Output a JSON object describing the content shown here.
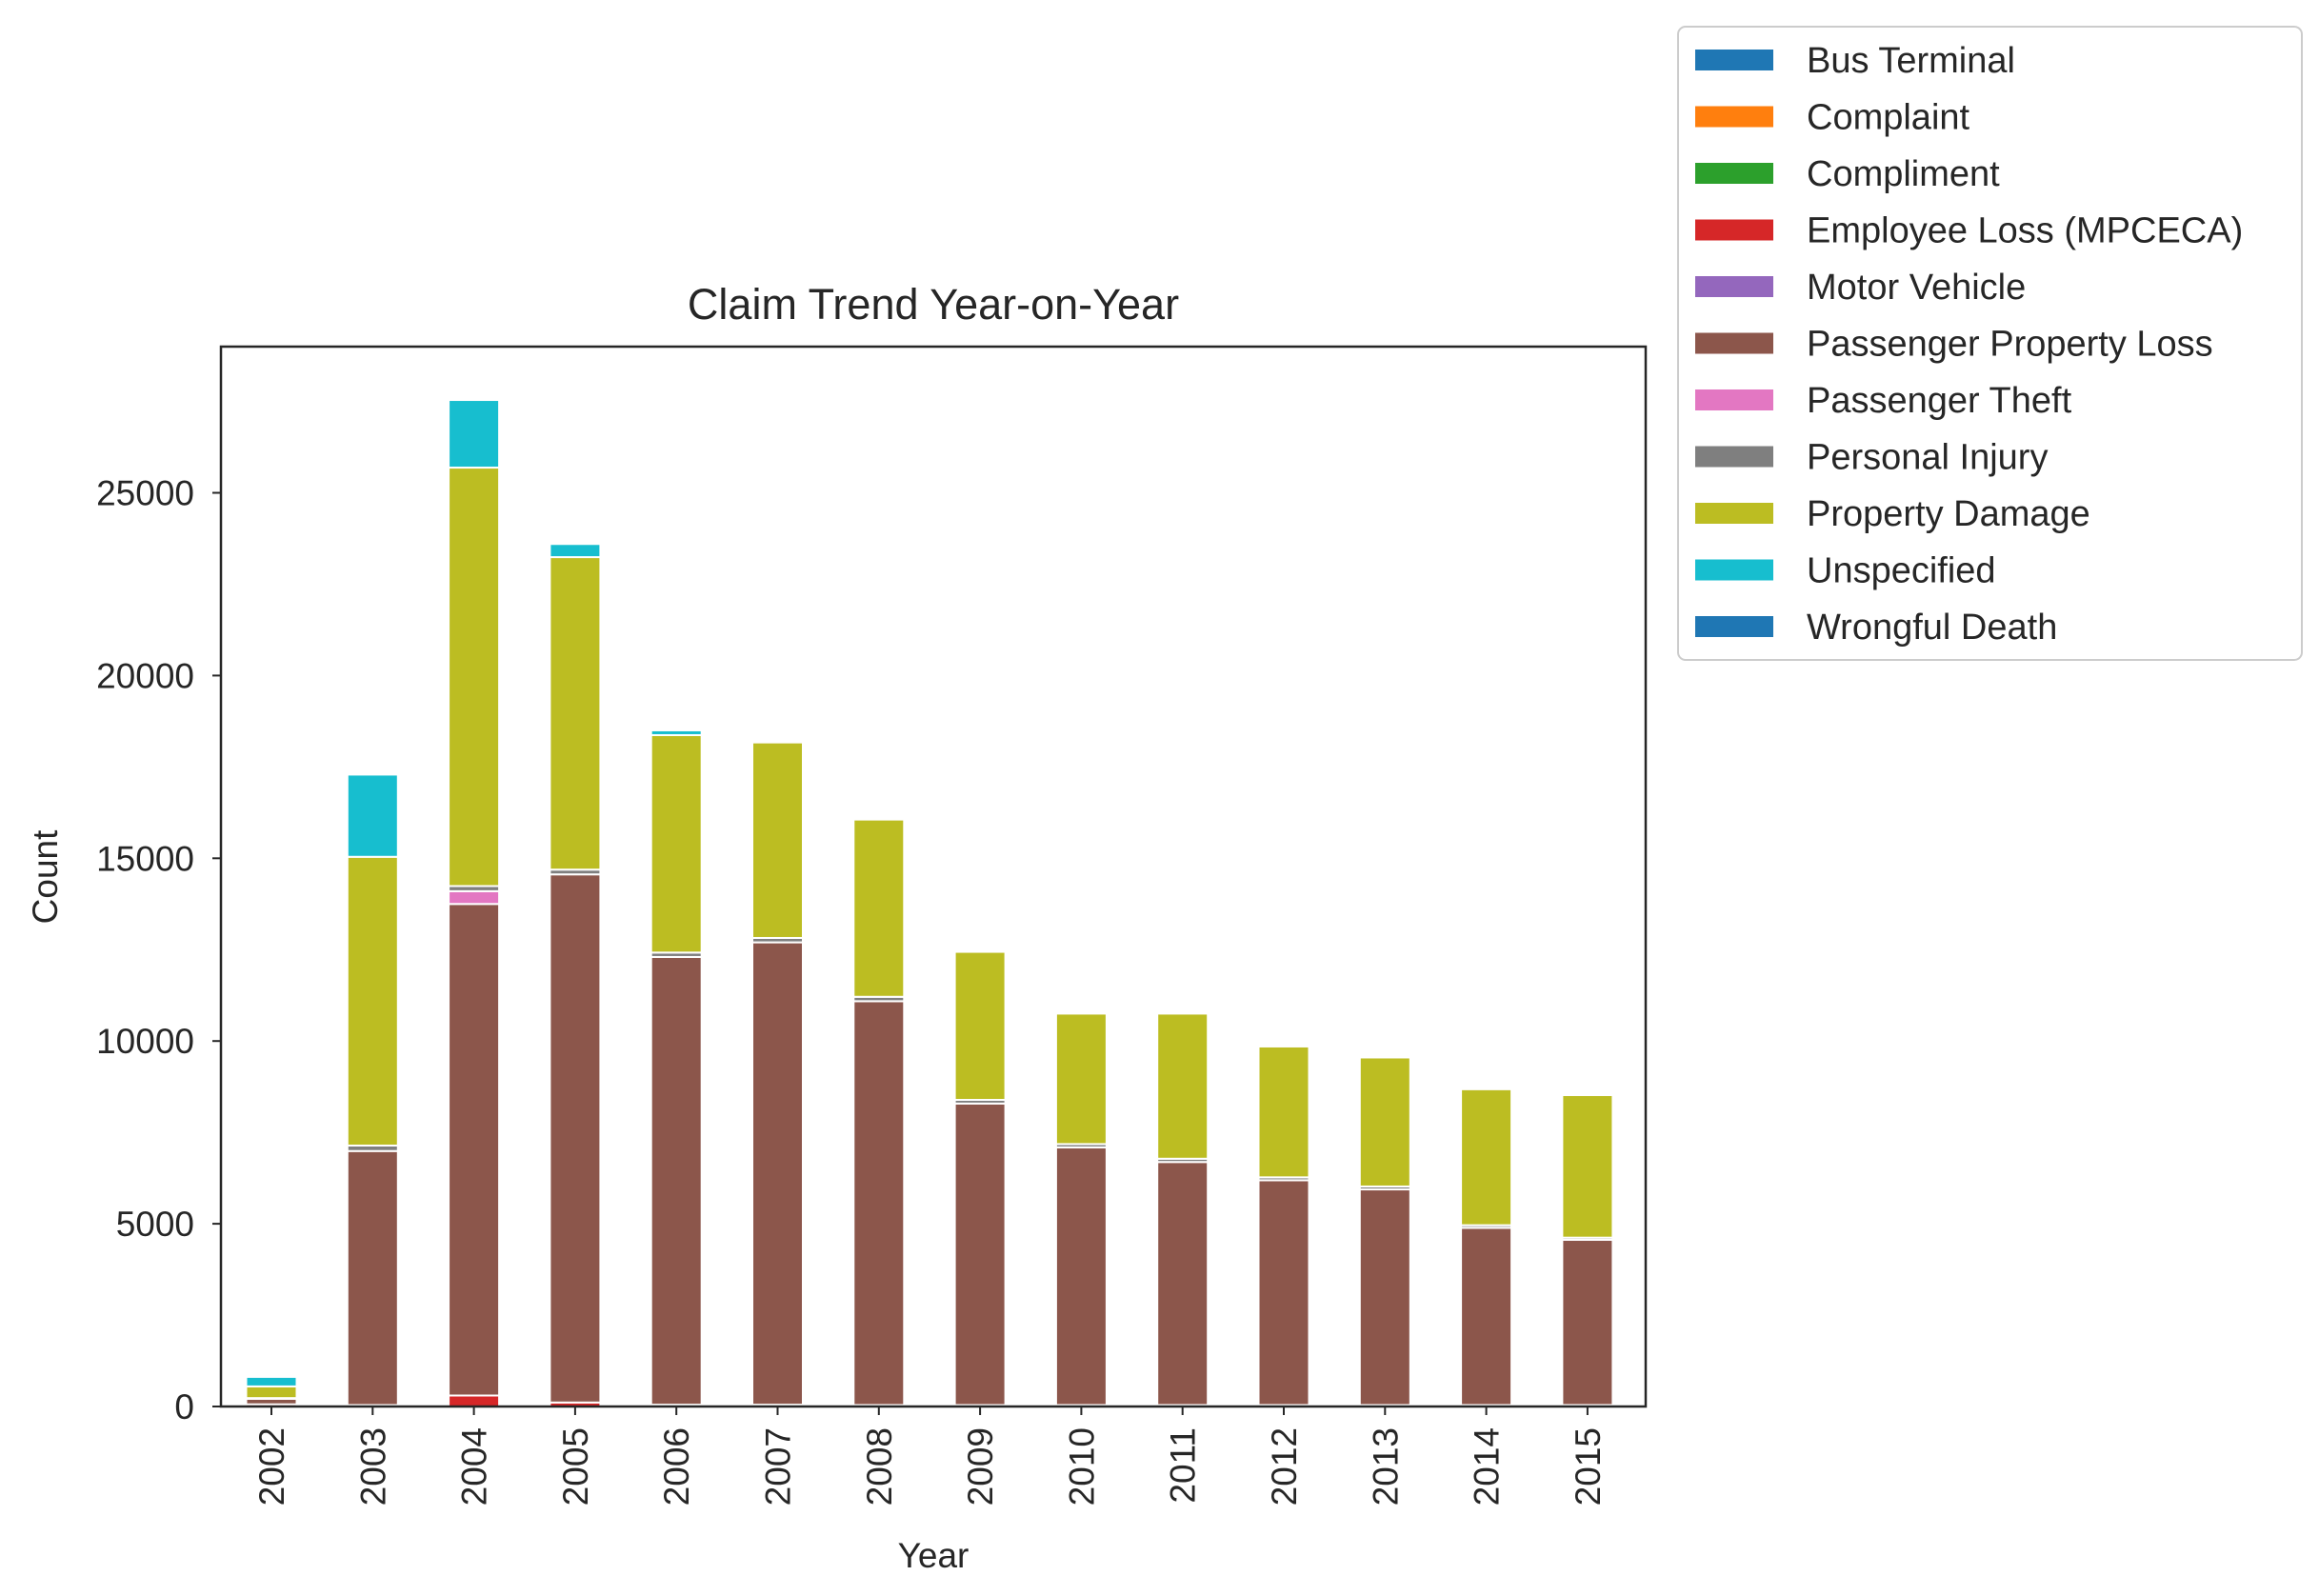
{
  "chart_data": {
    "type": "bar",
    "stacked": true,
    "title": "Claim Trend Year-on-Year",
    "xlabel": "Year",
    "ylabel": "Count",
    "ylim": [
      0,
      29000
    ],
    "yticks": [
      0,
      5000,
      10000,
      15000,
      20000,
      25000
    ],
    "grid": false,
    "legend_position": "outside-top-right",
    "categories": [
      "2002",
      "2003",
      "2004",
      "2005",
      "2006",
      "2007",
      "2008",
      "2009",
      "2010",
      "2011",
      "2012",
      "2013",
      "2014",
      "2015"
    ],
    "series": [
      {
        "name": "Bus Terminal",
        "color": "#1f77b4",
        "values": [
          0,
          0,
          0,
          0,
          0,
          0,
          0,
          0,
          0,
          0,
          0,
          0,
          0,
          0
        ]
      },
      {
        "name": "Complaint",
        "color": "#ff7f0e",
        "values": [
          0,
          0,
          0,
          0,
          0,
          0,
          0,
          0,
          0,
          0,
          0,
          0,
          0,
          0
        ]
      },
      {
        "name": "Compliment",
        "color": "#2ca02c",
        "values": [
          0,
          0,
          0,
          0,
          0,
          0,
          0,
          0,
          0,
          0,
          0,
          0,
          0,
          0
        ]
      },
      {
        "name": "Employee Loss (MPCECA)",
        "color": "#d62728",
        "values": [
          60,
          40,
          300,
          110,
          50,
          50,
          40,
          40,
          40,
          40,
          40,
          40,
          40,
          40
        ]
      },
      {
        "name": "Motor Vehicle",
        "color": "#9467bd",
        "values": [
          0,
          0,
          0,
          0,
          0,
          0,
          0,
          0,
          0,
          0,
          0,
          0,
          0,
          0
        ]
      },
      {
        "name": "Passenger Property Loss",
        "color": "#8c564b",
        "values": [
          150,
          6950,
          13450,
          14450,
          12250,
          12650,
          11050,
          8250,
          7050,
          6650,
          6150,
          5900,
          4850,
          4520
        ]
      },
      {
        "name": "Passenger Theft",
        "color": "#e377c2",
        "values": [
          0,
          0,
          350,
          0,
          0,
          0,
          0,
          0,
          0,
          0,
          0,
          0,
          0,
          0
        ]
      },
      {
        "name": "Personal Injury",
        "color": "#7f7f7f",
        "values": [
          20,
          150,
          140,
          130,
          120,
          120,
          120,
          100,
          90,
          90,
          80,
          80,
          70,
          60
        ]
      },
      {
        "name": "Property Damage",
        "color": "#bcbd22",
        "values": [
          320,
          7900,
          11450,
          8550,
          5950,
          5350,
          4850,
          4050,
          3570,
          3970,
          3580,
          3530,
          3720,
          3900
        ]
      },
      {
        "name": "Unspecified",
        "color": "#17becf",
        "values": [
          260,
          2250,
          1850,
          360,
          130,
          0,
          0,
          0,
          0,
          0,
          0,
          0,
          0,
          0
        ]
      },
      {
        "name": "Wrongful Death",
        "color": "#1f77b4",
        "values": [
          0,
          0,
          0,
          0,
          0,
          0,
          0,
          0,
          0,
          0,
          0,
          0,
          0,
          0
        ]
      }
    ]
  }
}
